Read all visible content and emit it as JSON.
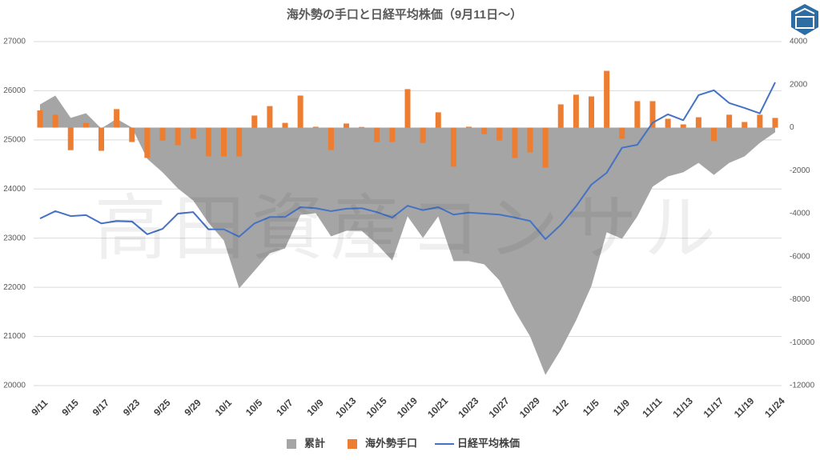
{
  "chart_data": {
    "type": "combo",
    "title": "海外勢の手口と日経平均株価（9月11日～）",
    "watermark": "高田資産コンサル",
    "categories": [
      "9/11",
      null,
      "9/15",
      null,
      "9/17",
      null,
      "9/23",
      null,
      "9/25",
      null,
      "9/29",
      null,
      "10/1",
      null,
      "10/5",
      null,
      "10/7",
      null,
      "10/9",
      null,
      "10/13",
      null,
      "10/15",
      null,
      "10/19",
      null,
      "10/21",
      null,
      "10/23",
      null,
      "10/27",
      null,
      "10/29",
      null,
      "11/2",
      null,
      "11/5",
      null,
      "11/9",
      null,
      "11/11",
      null,
      "11/13",
      null,
      "11/17",
      null,
      "11/19",
      null,
      "11/24"
    ],
    "ylim": [
      20000,
      27000
    ],
    "yticks": [
      20000,
      21000,
      22000,
      23000,
      24000,
      25000,
      26000,
      27000
    ],
    "y2lim": [
      -12000,
      4000
    ],
    "y2ticks": [
      -12000,
      -10000,
      -8000,
      -6000,
      -4000,
      -2000,
      0,
      2000,
      4000
    ],
    "grid": true,
    "legend": "bottom",
    "series": [
      {
        "name": "累計",
        "type": "area",
        "axis": "y2",
        "color": "#a5a5a5",
        "values": [
          1080,
          1490,
          450,
          670,
          -40,
          410,
          0,
          -1450,
          -2080,
          -2830,
          -3390,
          -4430,
          -5250,
          -7480,
          -6660,
          -5840,
          -5620,
          -4060,
          -3980,
          -5060,
          -4800,
          -4800,
          -5430,
          -6180,
          -4130,
          -5130,
          -4130,
          -6210,
          -6210,
          -6360,
          -7110,
          -8520,
          -9710,
          -11500,
          -10340,
          -8970,
          -7370,
          -4870,
          -5170,
          -4130,
          -2750,
          -2270,
          -2080,
          -1640,
          -2200,
          -1640,
          -1340,
          -710,
          -220
        ]
      },
      {
        "name": "海外勢手口",
        "type": "bar",
        "axis": "y2",
        "color": "#ed7d31",
        "values": [
          800,
          600,
          -1050,
          220,
          -1080,
          860,
          -670,
          -1410,
          -600,
          -820,
          -520,
          -1340,
          -1340,
          -1340,
          560,
          1000,
          220,
          1490,
          40,
          -1040,
          190,
          30,
          -670,
          -670,
          1790,
          -710,
          710,
          -1820,
          40,
          -300,
          -600,
          -1410,
          -1150,
          -1860,
          1080,
          1530,
          1450,
          2640,
          -520,
          1230,
          1230,
          410,
          150,
          480,
          -630,
          600,
          260,
          600,
          450
        ]
      },
      {
        "name": "日経平均株価",
        "type": "line",
        "axis": "y",
        "color": "#4472c4",
        "values": [
          23400,
          23550,
          23450,
          23470,
          23300,
          23350,
          23340,
          23080,
          23190,
          23500,
          23530,
          23180,
          23180,
          23030,
          23300,
          23430,
          23430,
          23630,
          23610,
          23550,
          23600,
          23610,
          23530,
          23420,
          23660,
          23570,
          23630,
          23480,
          23520,
          23500,
          23480,
          23420,
          23350,
          22980,
          23270,
          23650,
          24090,
          24330,
          24840,
          24900,
          25350,
          25520,
          25400,
          25910,
          26010,
          25750,
          25650,
          25540,
          26170
        ]
      }
    ]
  }
}
